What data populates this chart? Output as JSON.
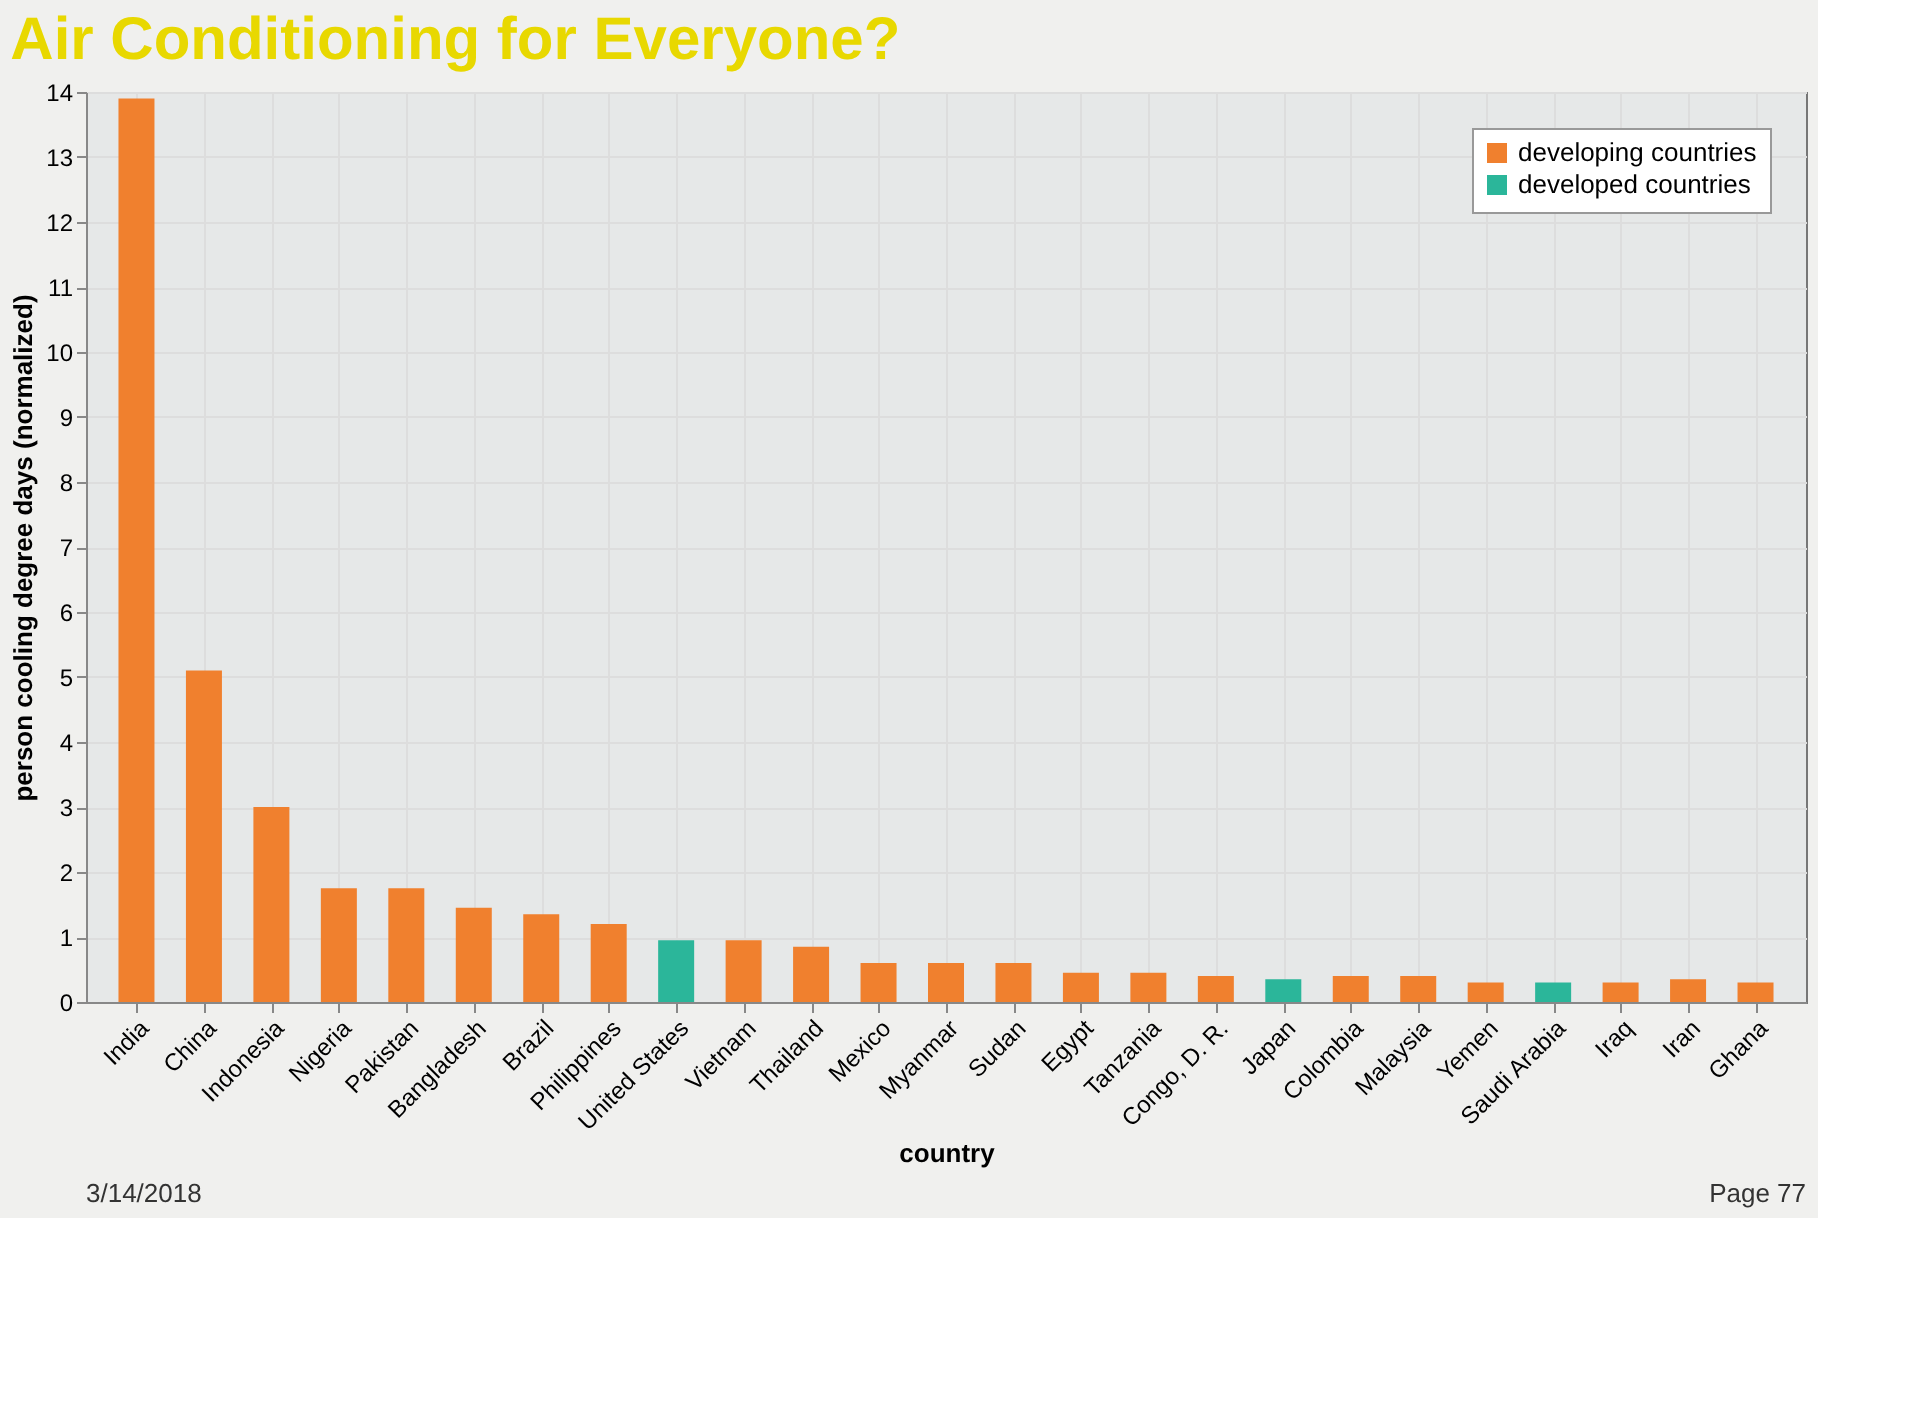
{
  "chart_data": {
    "type": "bar",
    "title": "Air Conditioning for Everyone?",
    "xlabel": "country",
    "ylabel": "person cooling degree days (normalized)",
    "categories": [
      "India",
      "China",
      "Indonesia",
      "Nigeria",
      "Pakistan",
      "Bangladesh",
      "Brazil",
      "Philippines",
      "United States",
      "Vietnam",
      "Thailand",
      "Mexico",
      "Myanmar",
      "Sudan",
      "Egypt",
      "Tanzania",
      "Congo, D. R.",
      "Japan",
      "Colombia",
      "Malaysia",
      "Yemen",
      "Saudi Arabia",
      "Iraq",
      "Iran",
      "Ghana"
    ],
    "series": [
      {
        "name": "developing countries",
        "color": "#f0802e",
        "values": [
          13.9,
          5.1,
          3.0,
          1.75,
          1.75,
          1.45,
          1.35,
          1.2,
          null,
          0.95,
          0.85,
          0.6,
          0.6,
          0.6,
          0.45,
          0.45,
          0.4,
          null,
          0.4,
          0.4,
          0.3,
          null,
          0.3,
          0.35,
          0.3
        ]
      },
      {
        "name": "developed countries",
        "color": "#2bb69a",
        "values": [
          null,
          null,
          null,
          null,
          null,
          null,
          null,
          null,
          0.95,
          null,
          null,
          null,
          null,
          null,
          null,
          null,
          null,
          0.35,
          null,
          null,
          null,
          0.3,
          null,
          null,
          null
        ]
      }
    ],
    "ylim": [
      0,
      14
    ],
    "yticks": [
      0,
      1,
      2,
      3,
      4,
      5,
      6,
      7,
      8,
      9,
      10,
      11,
      12,
      13,
      14
    ],
    "grid": true,
    "legend": "top right",
    "annotations": [
      "3/14/2018",
      "Page 77"
    ]
  }
}
